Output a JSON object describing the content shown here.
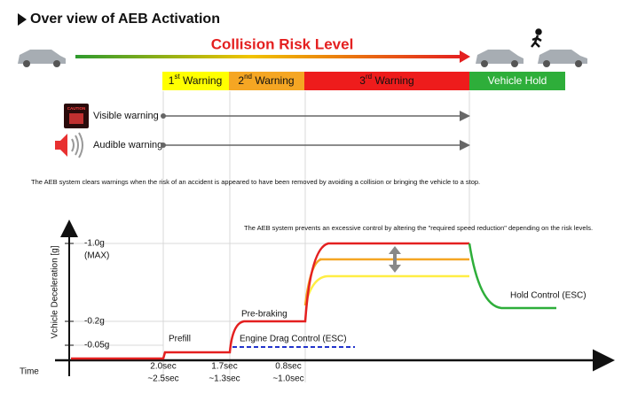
{
  "header": {
    "title": "Over view of AEB Activation"
  },
  "risk": {
    "label": "Collision Risk Level"
  },
  "stages": [
    {
      "num": "1",
      "sup": "st",
      "text": " Warning"
    },
    {
      "num": "2",
      "sup": "nd",
      "text": " Warning"
    },
    {
      "num": "3",
      "sup": "rd",
      "text": " Warning"
    },
    {
      "text": "Vehicle Hold"
    }
  ],
  "warnings": {
    "icon_text": "CAUTION",
    "visible": "Visible warning",
    "audible": "Audible warning"
  },
  "notes": [
    "The AEB system clears warnings when the risk of an accident is appeared to have been removed by avoiding a collision or bringing the vehicle to a stop.",
    "The AEB system prevents an excessive control by altering the \"required speed reduction\" depending on the risk levels."
  ],
  "graph": {
    "y_label": "Vchicle Deceleration [g]",
    "x_label": "Time",
    "levels": [
      "-1.0g",
      "(MAX)",
      "-0.2g",
      "-0.05g"
    ],
    "times": [
      [
        "2.0sec",
        "~2.5sec"
      ],
      [
        "1.7sec",
        "~1.3sec"
      ],
      [
        "0.8sec",
        "~1.0sec"
      ]
    ],
    "phases": [
      "Prefill",
      "Pre-braking",
      "Engine Drag Control (ESC)",
      "Hold Control (ESC)"
    ]
  }
}
